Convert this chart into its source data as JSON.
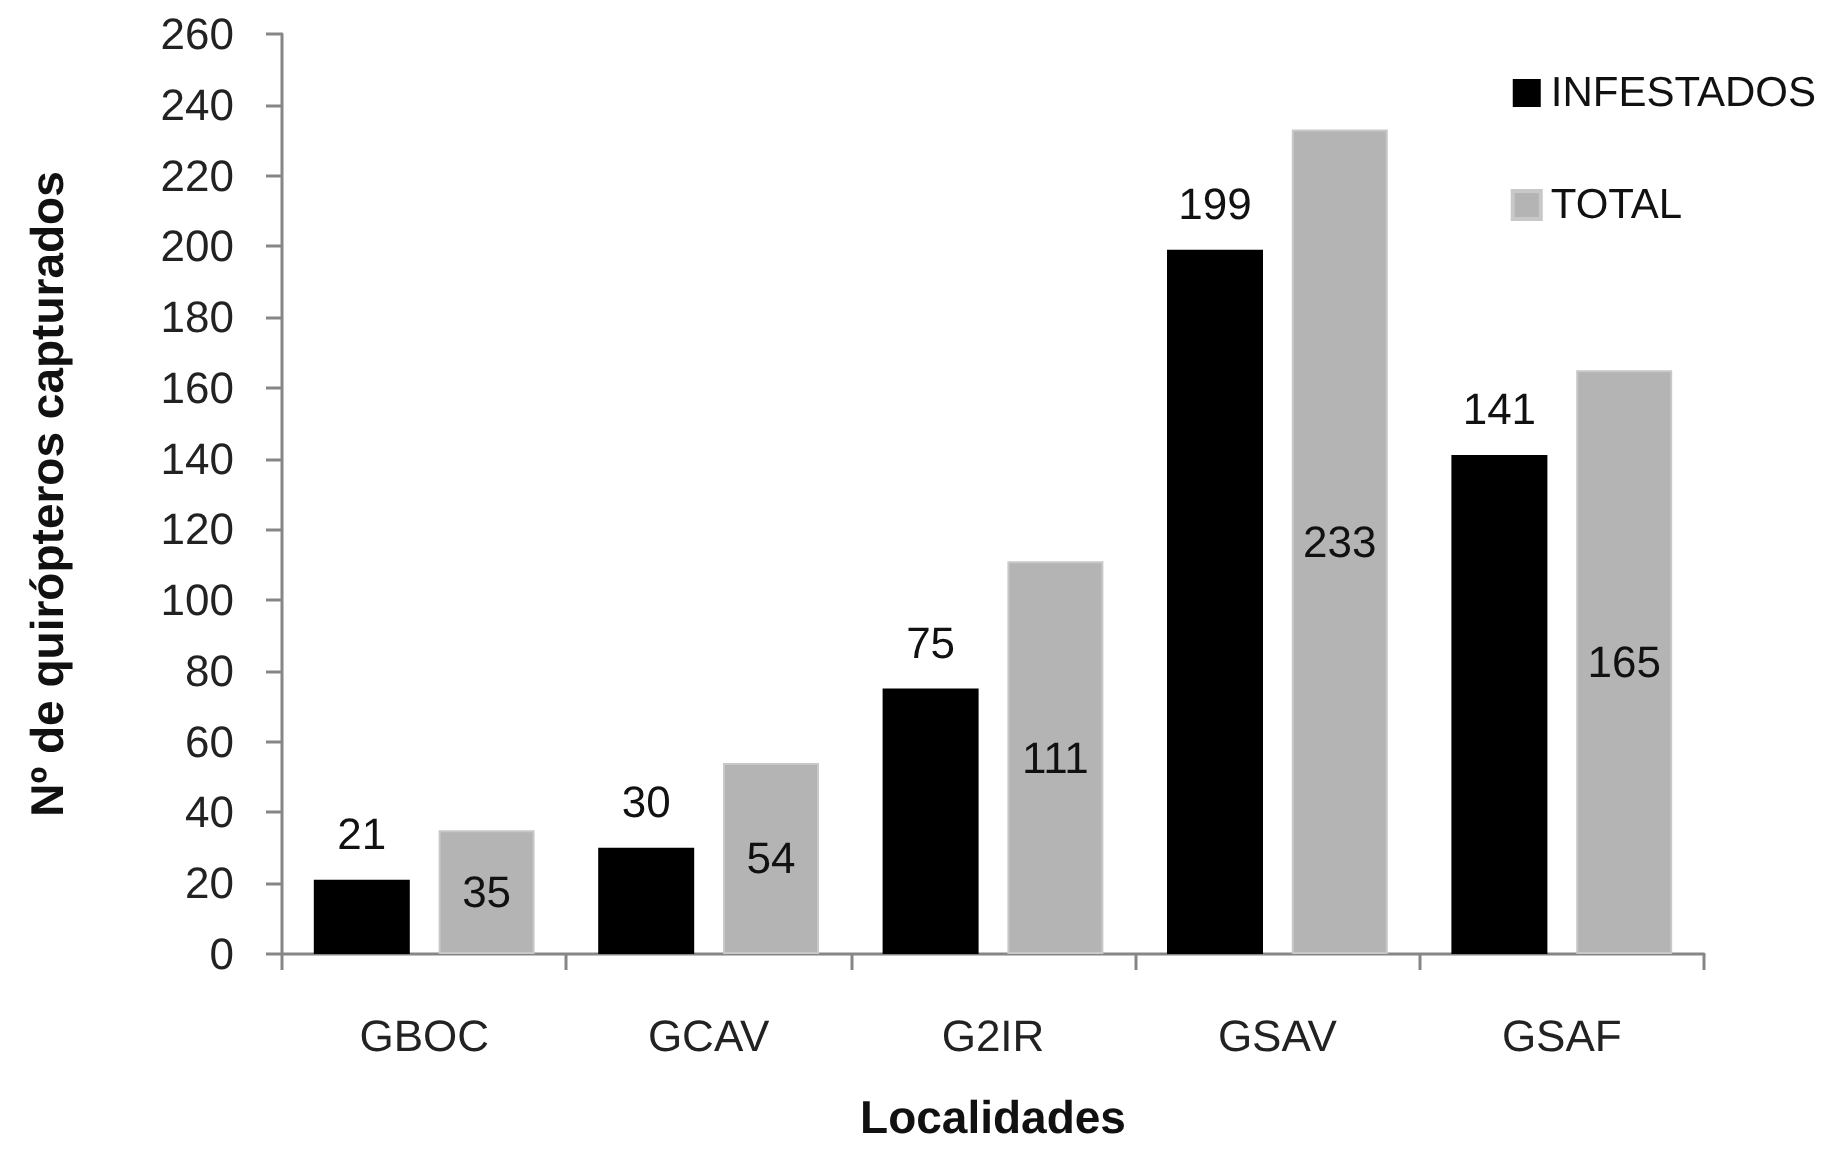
{
  "chart_data": {
    "type": "bar",
    "xlabel": "Localidades",
    "ylabel": "Nº de quirópteros capturados",
    "categories": [
      "GBOC",
      "GCAV",
      "G2IR",
      "GSAV",
      "GSAF"
    ],
    "series": [
      {
        "name": "INFESTADOS",
        "color": "#000000",
        "values": [
          21,
          30,
          75,
          199,
          141
        ]
      },
      {
        "name": "TOTAL",
        "color": "#b4b4b4",
        "values": [
          35,
          54,
          111,
          233,
          165
        ]
      }
    ],
    "ylim": [
      0,
      260
    ],
    "yticks": [
      0,
      20,
      40,
      60,
      80,
      100,
      120,
      140,
      160,
      180,
      200,
      220,
      240,
      260
    ],
    "data_labels": true,
    "legend": "top right",
    "grid": false
  }
}
